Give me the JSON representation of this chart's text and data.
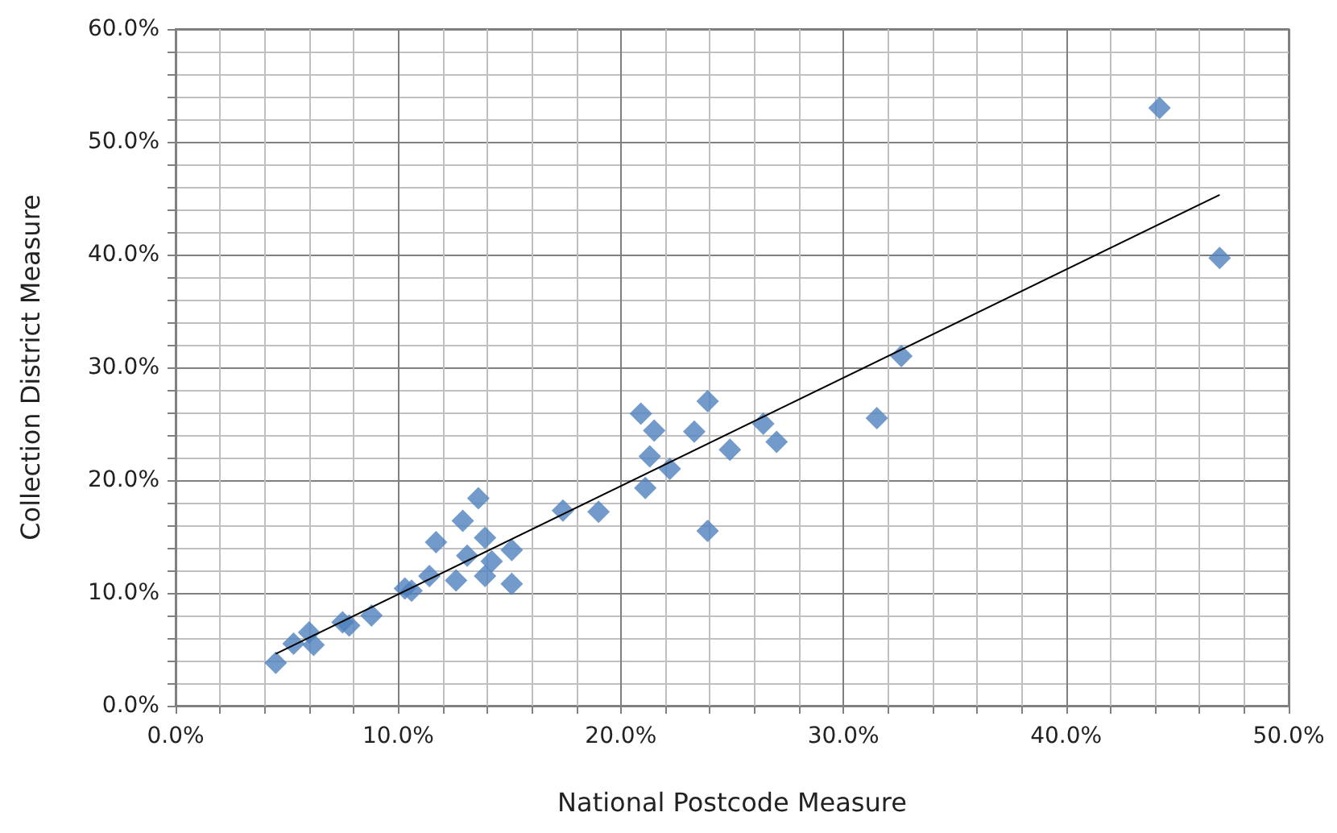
{
  "chart_data": {
    "type": "scatter",
    "xlabel": "National Postcode Measure",
    "ylabel": "Collection District Measure",
    "xlim": [
      0,
      50
    ],
    "ylim": [
      0,
      60
    ],
    "xticks": [
      {
        "value": 0,
        "label": "0.0%"
      },
      {
        "value": 2,
        "label": null
      },
      {
        "value": 4,
        "label": null
      },
      {
        "value": 6,
        "label": null
      },
      {
        "value": 8,
        "label": null
      },
      {
        "value": 10,
        "label": "10.0%"
      },
      {
        "value": 12,
        "label": null
      },
      {
        "value": 14,
        "label": null
      },
      {
        "value": 16,
        "label": null
      },
      {
        "value": 18,
        "label": null
      },
      {
        "value": 20,
        "label": "20.0%"
      },
      {
        "value": 22,
        "label": null
      },
      {
        "value": 24,
        "label": null
      },
      {
        "value": 26,
        "label": null
      },
      {
        "value": 28,
        "label": null
      },
      {
        "value": 30,
        "label": "30.0%"
      },
      {
        "value": 32,
        "label": null
      },
      {
        "value": 34,
        "label": null
      },
      {
        "value": 36,
        "label": null
      },
      {
        "value": 38,
        "label": null
      },
      {
        "value": 40,
        "label": "40.0%"
      },
      {
        "value": 42,
        "label": null
      },
      {
        "value": 44,
        "label": null
      },
      {
        "value": 46,
        "label": null
      },
      {
        "value": 48,
        "label": null
      },
      {
        "value": 50,
        "label": "50.0%"
      }
    ],
    "yticks": [
      {
        "value": 0,
        "label": "0.0%"
      },
      {
        "value": 2,
        "label": null
      },
      {
        "value": 4,
        "label": null
      },
      {
        "value": 6,
        "label": null
      },
      {
        "value": 8,
        "label": null
      },
      {
        "value": 10,
        "label": "10.0%"
      },
      {
        "value": 12,
        "label": null
      },
      {
        "value": 14,
        "label": null
      },
      {
        "value": 16,
        "label": null
      },
      {
        "value": 18,
        "label": null
      },
      {
        "value": 20,
        "label": "20.0%"
      },
      {
        "value": 22,
        "label": null
      },
      {
        "value": 24,
        "label": null
      },
      {
        "value": 26,
        "label": null
      },
      {
        "value": 28,
        "label": null
      },
      {
        "value": 30,
        "label": "30.0%"
      },
      {
        "value": 32,
        "label": null
      },
      {
        "value": 34,
        "label": null
      },
      {
        "value": 36,
        "label": null
      },
      {
        "value": 38,
        "label": null
      },
      {
        "value": 40,
        "label": "40.0%"
      },
      {
        "value": 42,
        "label": null
      },
      {
        "value": 44,
        "label": null
      },
      {
        "value": 46,
        "label": null
      },
      {
        "value": 48,
        "label": null
      },
      {
        "value": 50,
        "label": "50.0%"
      },
      {
        "value": 52,
        "label": null
      },
      {
        "value": 54,
        "label": null
      },
      {
        "value": 56,
        "label": null
      },
      {
        "value": 58,
        "label": null
      },
      {
        "value": 60,
        "label": "60.0%"
      }
    ],
    "grid": true,
    "series": [
      {
        "color": "#4f81bd",
        "marker": "diamond",
        "x": [
          4.5,
          5.3,
          6.0,
          6.2,
          7.5,
          7.8,
          8.8,
          10.3,
          10.6,
          11.4,
          11.7,
          12.6,
          12.9,
          13.1,
          13.6,
          13.9,
          13.9,
          14.2,
          15.1,
          15.1,
          17.4,
          19.0,
          20.9,
          21.5,
          21.3,
          22.2,
          21.1,
          23.9,
          23.3,
          24.9,
          23.9,
          26.4,
          27.0,
          31.5,
          32.6,
          44.2,
          46.9
        ],
        "values": [
          3.8,
          5.5,
          6.5,
          5.4,
          7.4,
          7.1,
          8.0,
          10.4,
          10.2,
          11.5,
          14.5,
          11.1,
          16.4,
          13.3,
          18.4,
          14.9,
          11.5,
          12.8,
          13.8,
          10.8,
          17.3,
          17.2,
          25.9,
          24.4,
          22.1,
          21.0,
          19.3,
          27.0,
          24.3,
          22.7,
          15.5,
          25.0,
          23.4,
          25.5,
          31.0,
          53.0,
          39.7
        ]
      },
      {
        "type": "line",
        "color": "#000000",
        "marker": "none",
        "x": [
          4.5,
          46.9
        ],
        "values": [
          4.6,
          45.3
        ]
      }
    ]
  }
}
